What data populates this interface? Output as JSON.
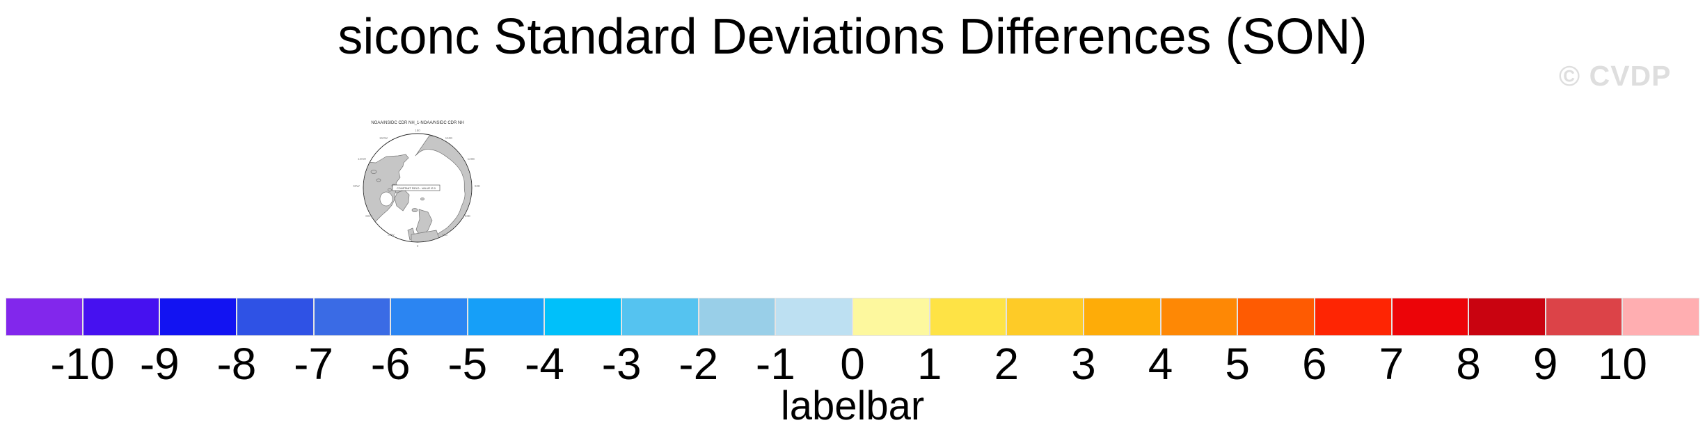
{
  "header": {
    "title": "siconc Standard Deviations Differences (SON)",
    "watermark": "© CVDP"
  },
  "map": {
    "title": "NOAA/NSIDC CDR NH_1-NOAA/NSIDC CDR NH",
    "annotation": "CONSTANT FIELD - VALUE IS 0",
    "ticks": [
      "180",
      "150W",
      "150E",
      "120W",
      "120E",
      "90W",
      "90E",
      "60W",
      "60E",
      "30W",
      "30E",
      "0"
    ],
    "land_color": "#c6c6c6"
  },
  "labelbar": {
    "axis_label": "labelbar",
    "tick_labels": [
      "-10",
      "-9",
      "-8",
      "-7",
      "-6",
      "-5",
      "-4",
      "-3",
      "-2",
      "-1",
      "0",
      "1",
      "2",
      "3",
      "4",
      "5",
      "6",
      "7",
      "8",
      "9",
      "10"
    ],
    "colors": [
      "#8227EC",
      "#4611F0",
      "#1213F2",
      "#2F52E5",
      "#3A6BE5",
      "#2B85F2",
      "#169FF8",
      "#00C0FA",
      "#55C3F0",
      "#99CFE8",
      "#BDE0F2",
      "#FDF89E",
      "#FEE345",
      "#FECB27",
      "#FEAC08",
      "#FE8805",
      "#FE5B02",
      "#FE2503",
      "#EC0408",
      "#C90310",
      "#DC4348",
      "#FFAEB1"
    ]
  },
  "chart_data": {
    "type": "heatmap",
    "title": "siconc Standard Deviations Differences (SON)",
    "watermark": "© CVDP",
    "panel": {
      "title": "NOAA/NSIDC CDR NH_1-NOAA/NSIDC CDR NH",
      "projection": "northern-hemisphere-polar-stereographic",
      "annotation": "CONSTANT FIELD - VALUE IS 0",
      "constant_value": 0,
      "longitude_ticks": [
        "180",
        "150W",
        "150E",
        "120W",
        "120E",
        "90W",
        "90E",
        "60W",
        "60E",
        "30W",
        "30E",
        "0"
      ]
    },
    "colorbar": {
      "label": "labelbar",
      "orientation": "horizontal",
      "bin_edges": [
        -10,
        -9,
        -8,
        -7,
        -6,
        -5,
        -4,
        -3,
        -2,
        -1,
        0,
        1,
        2,
        3,
        4,
        5,
        6,
        7,
        8,
        9,
        10
      ],
      "colors": [
        "#8227EC",
        "#4611F0",
        "#1213F2",
        "#2F52E5",
        "#3A6BE5",
        "#2B85F2",
        "#169FF8",
        "#00C0FA",
        "#55C3F0",
        "#99CFE8",
        "#BDE0F2",
        "#FDF89E",
        "#FEE345",
        "#FECB27",
        "#FEAC08",
        "#FE8805",
        "#FE5B02",
        "#FE2503",
        "#EC0408",
        "#C90310",
        "#DC4348",
        "#FFAEB1"
      ]
    }
  }
}
